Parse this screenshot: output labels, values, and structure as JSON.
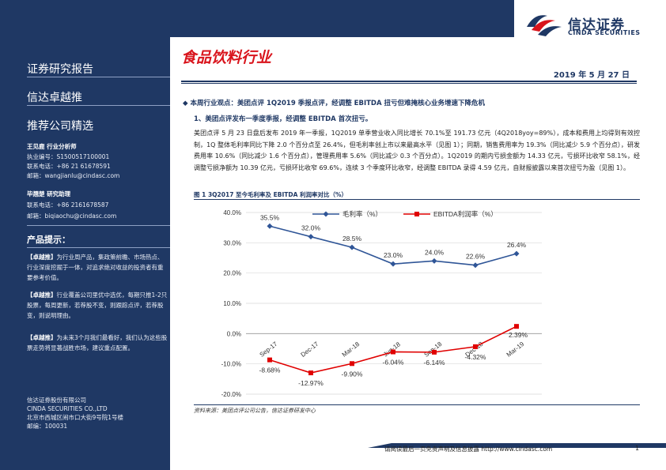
{
  "brand": {
    "name_cn": "信达证券",
    "name_en": "CINDA SECURITIES"
  },
  "sidebar": {
    "report_type": "证券研究报告",
    "series": "信达卓越推",
    "section": "推荐公司精选",
    "analyst1": {
      "name_role": "王见鹿  行业分析师",
      "cert": "执业编号：S1500517100001",
      "phone": "联系电话：+86 21 61678591",
      "email": "邮箱：wangjianlu@cindasc.com"
    },
    "analyst2": {
      "name_role": "毕翘楚  研究助理",
      "phone": "联系电话：+86 2161678587",
      "email": "邮箱：biqiaochu@cindasc.com"
    },
    "hint_title": "产品提示：",
    "hints": [
      {
        "tag": "【卓越推】",
        "text": "为行业周产品，集政策前瞻、市场热点、行业深度挖掘于一体，对追求绝对收益的投资者有重要参考价值。"
      },
      {
        "tag": "【卓越推】",
        "text": "行业覆盖公司里优中选优，每期只推1-2只股票，每周更新，若荐股不变，则跟踪点评，若荐股变，则说明理由。"
      },
      {
        "tag": "【卓越推】",
        "text": "为未来3个月我们最看好，我们认为这些股票走势将显著战胜市场，建议重点配置。"
      }
    ],
    "company_cn": "信达证券股份有限公司",
    "company_en": "CINDA SECURITIES CO.,LTD",
    "address": "北京市西城区闹市口大街9号院1号楼",
    "postcode": "邮编：100031"
  },
  "header": {
    "sector": "食品饮料行业",
    "date": "2019 年 5 月 27 日"
  },
  "content": {
    "viewpoint": "◆  本周行业观点：美团点评 1Q2019 季报点评，经调整 EBITDA 扭亏但难掩核心业务增速下降危机",
    "sub1": "1、美团点评发布一季度季报，经调整 EBITDA 首次扭亏。",
    "body": "美团点评 5 月 23 日盘后发布 2019 年一季报，1Q2019 单季营业收入同比增长 70.1%至 191.73 亿元（4Q2018yoy=89%），成本和费用上均得到有效控制，1Q 整体毛利率同比下降 2.0 个百分点至 26.4%，但毛利率创上市以来最高水平（见图 1）；同期，销售费用率为 19.3%（同比减少 5.9 个百分点），研发费用率 10.6%（同比减少 1.6 个百分点），管理费用率 5.6%（同比减少 0.3 个百分点）。1Q2019 的期内亏损金额为 14.33 亿元，亏损环比收窄 58.1%，经调整亏损净额为 10.39 亿元，亏损环比收窄 69.6%，连续 3 个季度环比收窄，经调整 EBITDA 录得 4.59 亿元，自财报披露以来首次扭亏为盈（见图 1）。",
    "figure_title": "图 1 3Q2017 至今毛利率及 EBITDA 利润率对比（%）",
    "source": "资料来源：美团点评公司公告，信达证券研发中心"
  },
  "chart_data": {
    "type": "line",
    "categories": [
      "Sep-17",
      "Dec-17",
      "Mar-18",
      "Jun-18",
      "Sep-18",
      "Dec-18",
      "Mar-19"
    ],
    "series": [
      {
        "name": "毛利率（%）",
        "values": [
          35.5,
          32.0,
          28.5,
          23.0,
          24.0,
          22.6,
          26.4
        ],
        "labels": [
          "35.5%",
          "32.0%",
          "28.5%",
          "23.0%",
          "24.0%",
          "22.6%",
          "26.4%"
        ],
        "color": "#2f5597"
      },
      {
        "name": "EBITDA利润率（%）",
        "values": [
          -8.68,
          -12.97,
          -9.9,
          -6.04,
          -6.14,
          -4.32,
          2.39
        ],
        "labels": [
          "-8.68%",
          "-12.97%",
          "-9.90%",
          "-6.04%",
          "-6.14%",
          "-4.32%",
          "2.39%"
        ],
        "color": "#e00000"
      }
    ],
    "yticks": [
      "40.0%",
      "30.0%",
      "20.0%",
      "10.0%",
      "0.0%",
      "-10.0%",
      "-20.0%"
    ],
    "ylim": [
      -20,
      40
    ],
    "legend": "top"
  },
  "footer": {
    "disclaimer": "请阅读最后一页免责声明及信息披露 http://www.cindasc.com",
    "page": "1"
  }
}
